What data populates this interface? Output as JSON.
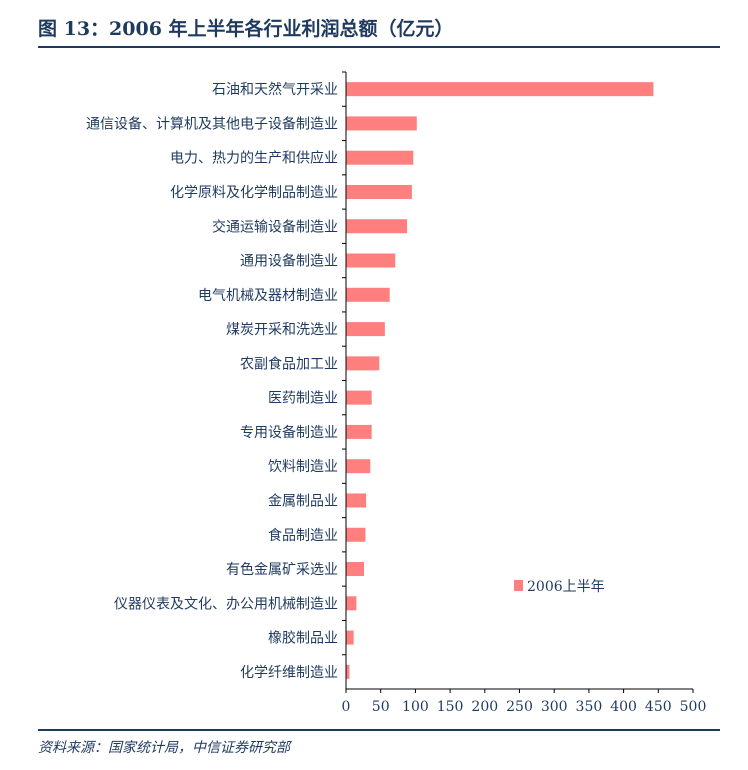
{
  "header": {
    "title": "图 13：2006 年上半年各行业利润总额（亿元）"
  },
  "footer": {
    "source": "资料来源：国家统计局，中信证券研究部"
  },
  "chart_data": {
    "type": "bar",
    "orientation": "horizontal",
    "title": "",
    "xlabel": "",
    "ylabel": "",
    "xlim": [
      0,
      500
    ],
    "ticks": [
      0,
      50,
      100,
      150,
      200,
      250,
      300,
      350,
      400,
      450,
      500
    ],
    "grid": false,
    "legend_position": "right",
    "bar_color": "#ff7f7f",
    "axis_color": "#000000",
    "categories": [
      "石油和天然气开采业",
      "通信设备、计算机及其他电子设备制造业",
      "电力、热力的生产和供应业",
      "化学原料及化学制品制造业",
      "交通运输设备制造业",
      "通用设备制造业",
      "电气机械及器材制造业",
      "煤炭开采和洗选业",
      "农副食品加工业",
      "医药制造业",
      "专用设备制造业",
      "饮料制造业",
      "金属制品业",
      "食品制造业",
      "有色金属矿采选业",
      "仪器仪表及文化、办公用机械制造业",
      "橡胶制品业",
      "化学纤维制造业"
    ],
    "series": [
      {
        "name": "2006上半年",
        "values": [
          443,
          102,
          97,
          95,
          88,
          71,
          63,
          56,
          48,
          37,
          37,
          35,
          29,
          28,
          26,
          15,
          11,
          5
        ]
      }
    ]
  }
}
